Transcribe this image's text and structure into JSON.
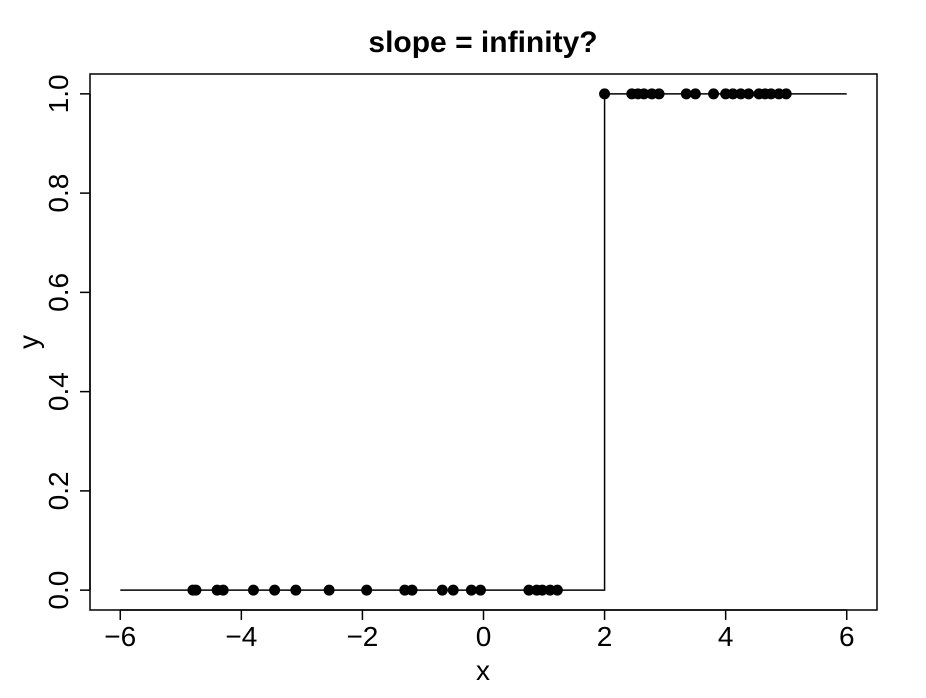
{
  "chart_data": {
    "type": "scatter",
    "title": "slope = infinity?",
    "xlabel": "x",
    "ylabel": "y",
    "xlim": [
      -6.5,
      6.5
    ],
    "ylim": [
      -0.04,
      1.04
    ],
    "x_ticks": [
      -6,
      -4,
      -2,
      0,
      2,
      4,
      6
    ],
    "x_tick_labels": [
      "−6",
      "−4",
      "−2",
      "0",
      "2",
      "4",
      "6"
    ],
    "y_ticks": [
      0.0,
      0.2,
      0.4,
      0.6,
      0.8,
      1.0
    ],
    "y_tick_labels": [
      "0.0",
      "0.2",
      "0.4",
      "0.6",
      "0.8",
      "1.0"
    ],
    "grid": false,
    "colors": {
      "points": "#000000",
      "line": "#000000",
      "frame": "#000000"
    },
    "points": [
      {
        "x": -4.8,
        "y": 0
      },
      {
        "x": -4.75,
        "y": 0
      },
      {
        "x": -4.4,
        "y": 0
      },
      {
        "x": -4.3,
        "y": 0
      },
      {
        "x": -3.8,
        "y": 0
      },
      {
        "x": -3.45,
        "y": 0
      },
      {
        "x": -3.1,
        "y": 0
      },
      {
        "x": -2.55,
        "y": 0
      },
      {
        "x": -1.93,
        "y": 0
      },
      {
        "x": -1.3,
        "y": 0
      },
      {
        "x": -1.18,
        "y": 0
      },
      {
        "x": -0.68,
        "y": 0
      },
      {
        "x": -0.5,
        "y": 0
      },
      {
        "x": -0.2,
        "y": 0
      },
      {
        "x": -0.05,
        "y": 0
      },
      {
        "x": 0.75,
        "y": 0
      },
      {
        "x": 0.88,
        "y": 0
      },
      {
        "x": 0.97,
        "y": 0
      },
      {
        "x": 1.1,
        "y": 0
      },
      {
        "x": 1.22,
        "y": 0
      },
      {
        "x": 2.0,
        "y": 1
      },
      {
        "x": 2.45,
        "y": 1
      },
      {
        "x": 2.55,
        "y": 1
      },
      {
        "x": 2.65,
        "y": 1
      },
      {
        "x": 2.78,
        "y": 1
      },
      {
        "x": 2.9,
        "y": 1
      },
      {
        "x": 3.35,
        "y": 1
      },
      {
        "x": 3.5,
        "y": 1
      },
      {
        "x": 3.8,
        "y": 1
      },
      {
        "x": 4.0,
        "y": 1
      },
      {
        "x": 4.12,
        "y": 1
      },
      {
        "x": 4.25,
        "y": 1
      },
      {
        "x": 4.38,
        "y": 1
      },
      {
        "x": 4.55,
        "y": 1
      },
      {
        "x": 4.65,
        "y": 1
      },
      {
        "x": 4.75,
        "y": 1
      },
      {
        "x": 4.88,
        "y": 1
      },
      {
        "x": 5.0,
        "y": 1
      }
    ],
    "step_line": [
      {
        "x": -6,
        "y": 0
      },
      {
        "x": 2,
        "y": 0
      },
      {
        "x": 2,
        "y": 1
      },
      {
        "x": 6,
        "y": 1
      }
    ]
  }
}
